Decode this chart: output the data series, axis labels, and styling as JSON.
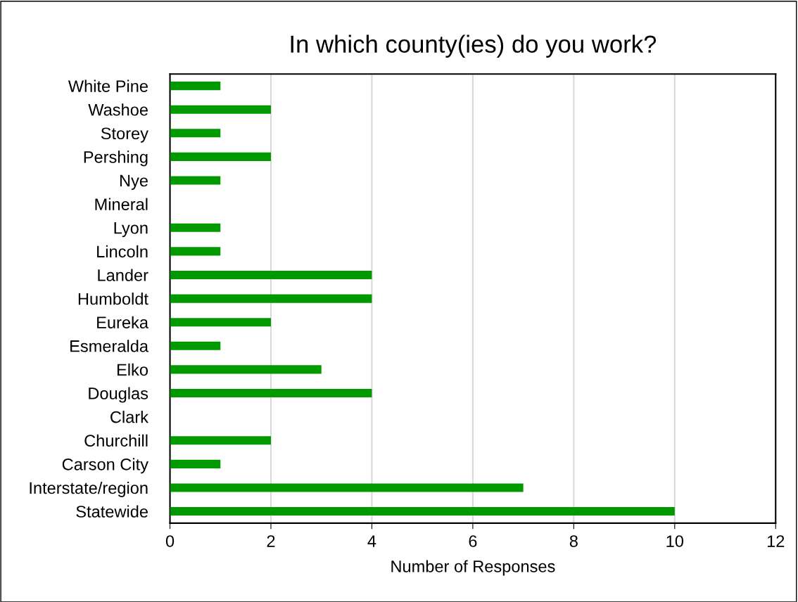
{
  "chart_data": {
    "type": "bar",
    "orientation": "horizontal",
    "title": "In which county(ies) do you work?",
    "xlabel": "Number of Responses",
    "categories": [
      "White Pine",
      "Washoe",
      "Storey",
      "Pershing",
      "Nye",
      "Mineral",
      "Lyon",
      "Lincoln",
      "Lander",
      "Humboldt",
      "Eureka",
      "Esmeralda",
      "Elko",
      "Douglas",
      "Clark",
      "Churchill",
      "Carson City",
      "Interstate/region",
      "Statewide"
    ],
    "values": [
      1,
      2,
      1,
      2,
      1,
      0,
      1,
      1,
      4,
      4,
      2,
      1,
      3,
      4,
      0,
      2,
      1,
      7,
      10
    ],
    "color": "#009900",
    "xlim": [
      0,
      12
    ],
    "xticks": [
      0,
      2,
      4,
      6,
      8,
      10,
      12
    ],
    "grid": "x",
    "legend": false
  }
}
